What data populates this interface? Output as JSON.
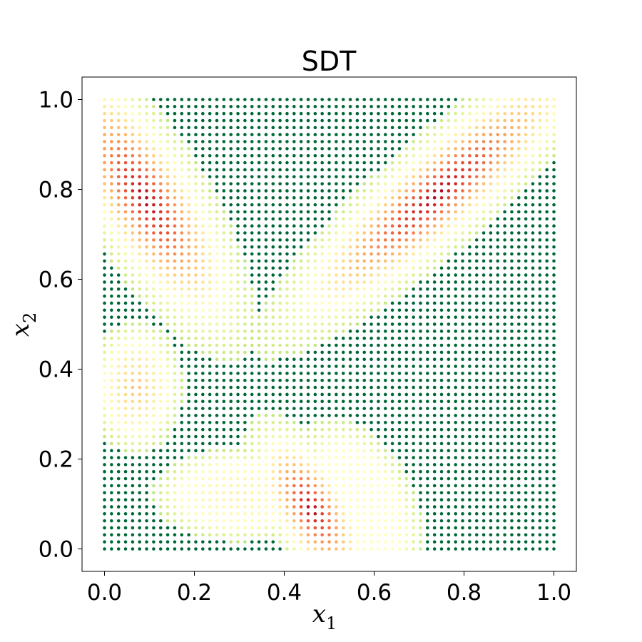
{
  "chart_data": {
    "type": "scatter",
    "title": "SDT",
    "xlabel": {
      "symbol": "x",
      "subscript": "1"
    },
    "ylabel": {
      "symbol": "x",
      "subscript": "2"
    },
    "xlim": [
      -0.05,
      1.05
    ],
    "ylim": [
      -0.05,
      1.05
    ],
    "xticks": [
      0.0,
      0.2,
      0.4,
      0.6,
      0.8,
      1.0
    ],
    "xtick_labels": [
      "0.0",
      "0.2",
      "0.4",
      "0.6",
      "0.8",
      "1.0"
    ],
    "yticks": [
      0.0,
      0.2,
      0.4,
      0.6,
      0.8,
      1.0
    ],
    "ytick_labels": [
      "0.0",
      "0.2",
      "0.4",
      "0.6",
      "0.8",
      "1.0"
    ],
    "grid": false,
    "legend": "none",
    "colormap": "RdYlGn",
    "color_stops": [
      "#a50026",
      "#d73027",
      "#f46d43",
      "#fdae61",
      "#fee08b",
      "#ffffbf",
      "#d9ef8b",
      "#a6d96a",
      "#66bd63",
      "#1a9850",
      "#006837"
    ],
    "grid_points": {
      "x_start": 0.0,
      "x_end": 1.0,
      "y_start": 0.0,
      "y_end": 1.0,
      "count_per_axis": 65
    },
    "regions": [
      {
        "name": "top-left band",
        "center": [
          0.09,
          0.78
        ],
        "direction": [
          0.52,
          -0.85
        ],
        "half_length": 0.28,
        "half_width": 0.095,
        "core_value": 0.0
      },
      {
        "name": "top-right band",
        "center": [
          0.74,
          0.79
        ],
        "direction": [
          0.75,
          0.66
        ],
        "half_length": 0.36,
        "half_width": 0.085,
        "core_value": 0.0
      },
      {
        "name": "bottom-center band",
        "center": [
          0.46,
          0.09
        ],
        "direction": [
          0.5,
          -0.87
        ],
        "half_length": 0.16,
        "half_width": 0.07,
        "core_value": 0.0
      },
      {
        "name": "left-middle blob",
        "center": [
          0.07,
          0.36
        ],
        "direction": [
          0.0,
          1.0
        ],
        "half_length": 0.1,
        "half_width": 0.07,
        "core_value": 0.33
      },
      {
        "name": "bottom-left blob",
        "center": [
          0.3,
          0.12
        ],
        "direction": [
          1.0,
          0.0
        ],
        "half_length": 0.13,
        "half_width": 0.07,
        "core_value": 0.45
      },
      {
        "name": "bottom-right blob",
        "center": [
          0.57,
          0.1
        ],
        "direction": [
          0.45,
          -0.89
        ],
        "half_length": 0.14,
        "half_width": 0.08,
        "core_value": 0.5
      }
    ]
  }
}
